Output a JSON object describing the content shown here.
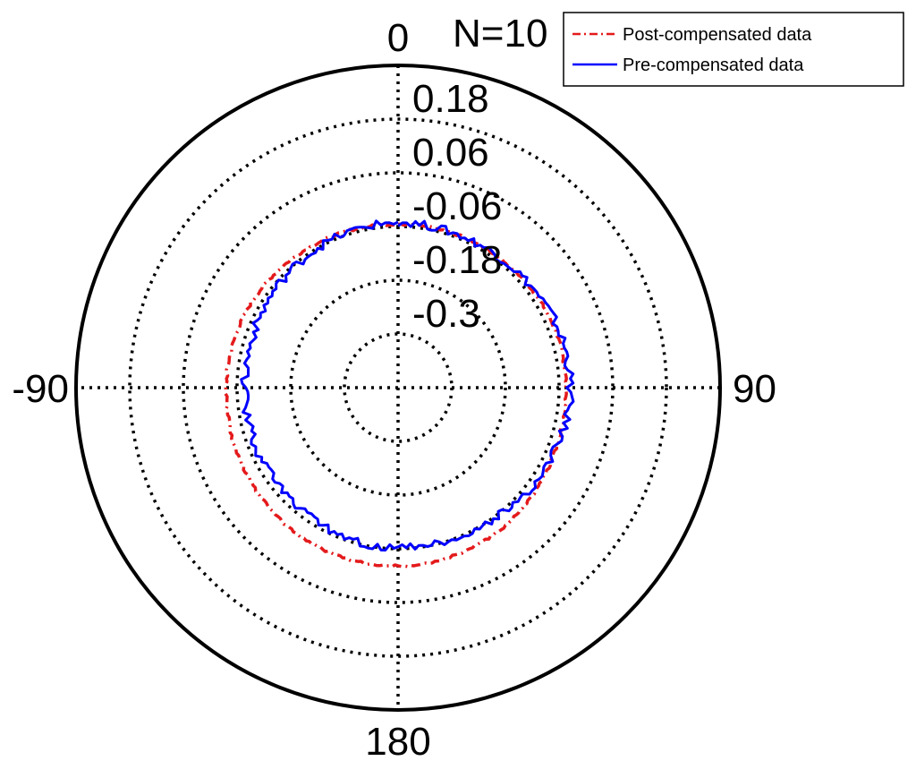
{
  "chart_data": {
    "type": "line",
    "subtype": "polar",
    "title": "N=10",
    "angle_tick_labels": [
      "0",
      "90",
      "180",
      "-90"
    ],
    "radial_tick_labels": [
      "0.18",
      "0.06",
      "-0.06",
      "-0.18",
      "-0.3"
    ],
    "rlim": [
      -0.42,
      0.3
    ],
    "radial_rings": [
      -0.42,
      -0.3,
      -0.18,
      -0.06,
      0.06,
      0.18,
      0.3
    ],
    "theta_zero": "top",
    "theta_direction": "clockwise",
    "grid": true,
    "legend": {
      "position": "top-right"
    },
    "series": [
      {
        "name": "Post-compensated data",
        "color": "#e41a1c",
        "style": "dash-dot",
        "theta_deg": [
          0,
          10,
          20,
          30,
          40,
          50,
          60,
          70,
          80,
          90,
          100,
          110,
          120,
          130,
          140,
          150,
          160,
          170,
          180,
          190,
          200,
          210,
          220,
          230,
          240,
          250,
          260,
          270,
          280,
          290,
          300,
          310,
          320,
          330,
          340,
          350,
          360
        ],
        "r": [
          -0.055,
          -0.054,
          -0.054,
          -0.053,
          -0.052,
          -0.05,
          -0.048,
          -0.046,
          -0.045,
          -0.044,
          -0.043,
          -0.042,
          -0.038,
          -0.034,
          -0.03,
          -0.027,
          -0.025,
          -0.023,
          -0.022,
          -0.021,
          -0.021,
          -0.022,
          -0.024,
          -0.027,
          -0.03,
          -0.032,
          -0.035,
          -0.036,
          -0.037,
          -0.039,
          -0.041,
          -0.044,
          -0.047,
          -0.05,
          -0.052,
          -0.054,
          -0.055
        ]
      },
      {
        "name": "Pre-compensated data",
        "color": "#0000ff",
        "style": "solid",
        "theta_deg": [
          0,
          10,
          20,
          30,
          40,
          50,
          60,
          70,
          80,
          90,
          100,
          110,
          120,
          130,
          140,
          150,
          160,
          170,
          180,
          190,
          200,
          210,
          220,
          230,
          240,
          250,
          260,
          270,
          280,
          290,
          300,
          310,
          320,
          330,
          340,
          350,
          360
        ],
        "r": [
          -0.05,
          -0.052,
          -0.053,
          -0.052,
          -0.05,
          -0.047,
          -0.043,
          -0.038,
          -0.036,
          -0.035,
          -0.037,
          -0.041,
          -0.046,
          -0.051,
          -0.055,
          -0.058,
          -0.06,
          -0.062,
          -0.063,
          -0.064,
          -0.066,
          -0.068,
          -0.071,
          -0.073,
          -0.075,
          -0.076,
          -0.077,
          -0.078,
          -0.077,
          -0.075,
          -0.072,
          -0.068,
          -0.064,
          -0.06,
          -0.056,
          -0.053,
          -0.05
        ]
      }
    ]
  }
}
